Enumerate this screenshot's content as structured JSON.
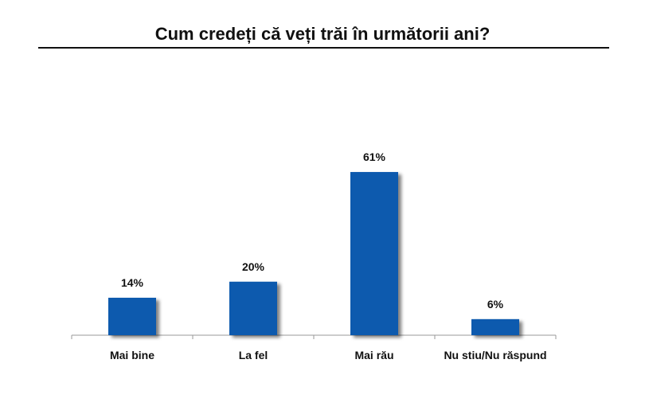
{
  "chart_data": {
    "type": "bar",
    "title": "Cum credeți că veți trăi în următorii ani?",
    "categories": [
      "Mai bine",
      "La fel",
      "Mai rău",
      "Nu stiu/Nu răspund"
    ],
    "values": [
      14,
      20,
      61,
      6
    ],
    "value_labels": [
      "14%",
      "20%",
      "61%",
      "6%"
    ],
    "xlabel": "",
    "ylabel": "",
    "ylim": [
      0,
      100
    ],
    "grid": false,
    "legend": "none",
    "bar_color": "#0B5AAE"
  }
}
